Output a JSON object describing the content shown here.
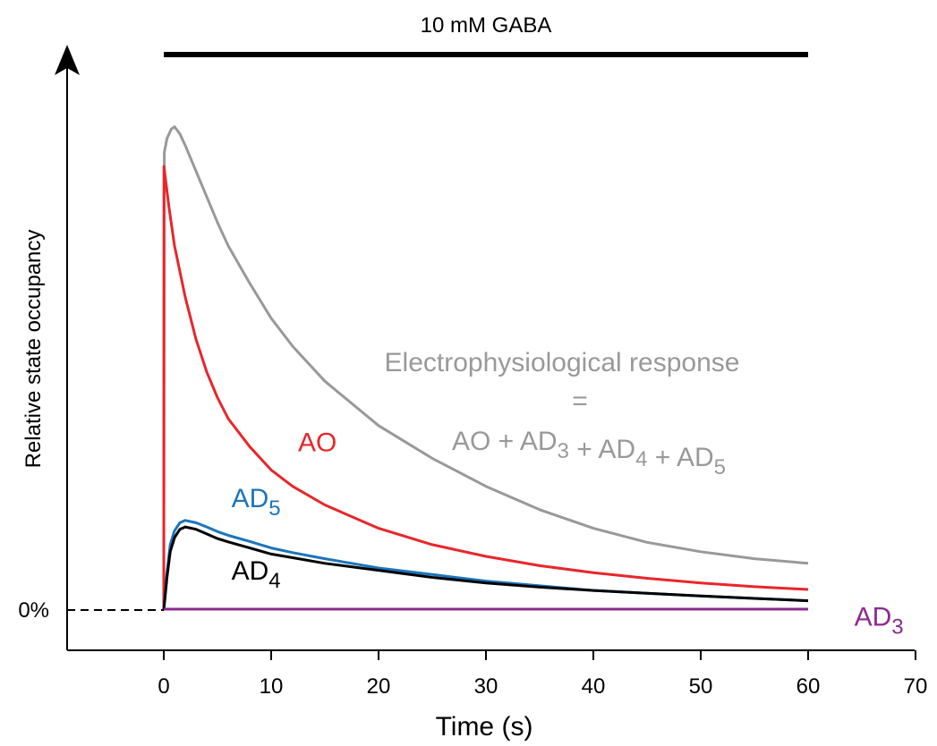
{
  "chart_data": {
    "type": "line",
    "title": "",
    "xlabel": "Time (s)",
    "ylabel": "Relative state occupancy",
    "xlim": [
      -9,
      70
    ],
    "ylim": [
      -3.5,
      110
    ],
    "x_ticks": [
      0,
      10,
      20,
      30,
      40,
      50,
      60,
      70
    ],
    "y_tick_label": "0%",
    "y_tick_value": 0,
    "grid": false,
    "stimulus": {
      "label": "10 mM GABA",
      "start": 0,
      "end": 60
    },
    "annotation": {
      "line1": "Electrophysiological response",
      "line2": "=",
      "eq": [
        {
          "base": "AO + AD",
          "sub": "3"
        },
        {
          "base": " + AD",
          "sub": "4"
        },
        {
          "base": " + AD",
          "sub": "5"
        }
      ],
      "color": "#999999"
    },
    "series": [
      {
        "name": "Electrophysiological response",
        "color": "#999999",
        "x": [
          0,
          0.05,
          0.3,
          0.7,
          1.0,
          1.5,
          2,
          3,
          4,
          5,
          6,
          8,
          10,
          12,
          15,
          20,
          25,
          30,
          35,
          40,
          45,
          50,
          55,
          60
        ],
        "y": [
          0,
          98,
          101,
          103,
          103.5,
          102,
          99.5,
          94,
          88.5,
          83,
          78,
          70,
          62.5,
          56.5,
          49,
          39.5,
          32.5,
          26.5,
          21.5,
          17.5,
          14.5,
          12.5,
          11,
          10
        ]
      },
      {
        "name": "AO",
        "color": "#e8262b",
        "x": [
          0,
          0.02,
          0.5,
          1,
          2,
          3,
          4,
          5,
          6,
          8,
          10,
          12,
          15,
          20,
          25,
          30,
          35,
          40,
          45,
          50,
          55,
          60
        ],
        "y": [
          0,
          95,
          86,
          78,
          67,
          58,
          51,
          45.5,
          41,
          35,
          30,
          26.5,
          22.5,
          17.5,
          14,
          11.5,
          9.5,
          8,
          6.8,
          5.8,
          5,
          4.4
        ]
      },
      {
        "name": "AD",
        "sub": "5",
        "color": "#1b75bb",
        "x": [
          0,
          0.3,
          0.6,
          1.0,
          1.5,
          2,
          3,
          4,
          5,
          6,
          8,
          10,
          12,
          15,
          20,
          25,
          30,
          35,
          40,
          45,
          50,
          55,
          60
        ],
        "y": [
          0,
          8,
          14,
          17,
          18.7,
          19.2,
          18.7,
          17.8,
          16.8,
          16,
          14.7,
          13.3,
          12.3,
          11,
          9,
          7.6,
          6.2,
          5.2,
          4.2,
          3.6,
          3,
          2.5,
          2
        ]
      },
      {
        "name": "AD",
        "sub": "4",
        "color": "#000000",
        "x": [
          0,
          0.3,
          0.6,
          1.0,
          1.5,
          2,
          3,
          4,
          5,
          6,
          8,
          10,
          12,
          15,
          20,
          25,
          30,
          35,
          40,
          45,
          50,
          55,
          60
        ],
        "y": [
          0,
          7,
          12.5,
          15.5,
          17.3,
          17.8,
          17.3,
          16.3,
          15.3,
          14.6,
          13.3,
          12,
          11.2,
          10,
          8.5,
          7,
          5.8,
          4.9,
          4.2,
          3.6,
          3,
          2.5,
          2
        ]
      },
      {
        "name": "AD",
        "sub": "3",
        "color": "#8b2a8e",
        "x": [
          0,
          60
        ],
        "y": [
          0.2,
          0.2
        ]
      }
    ],
    "labels": [
      {
        "text": "AO",
        "sub": "",
        "x": 12.5,
        "y": 34,
        "color": "#e8262b"
      },
      {
        "text": "AD",
        "sub": "5",
        "x": 6.3,
        "y": 22,
        "color": "#1b75bb"
      },
      {
        "text": "AD",
        "sub": "4",
        "x": 6.3,
        "y": 6.5,
        "color": "#000000"
      },
      {
        "text": "AD",
        "sub": "3",
        "x": 64.3,
        "y": -3.4,
        "color": "#8b2a8e"
      }
    ]
  }
}
